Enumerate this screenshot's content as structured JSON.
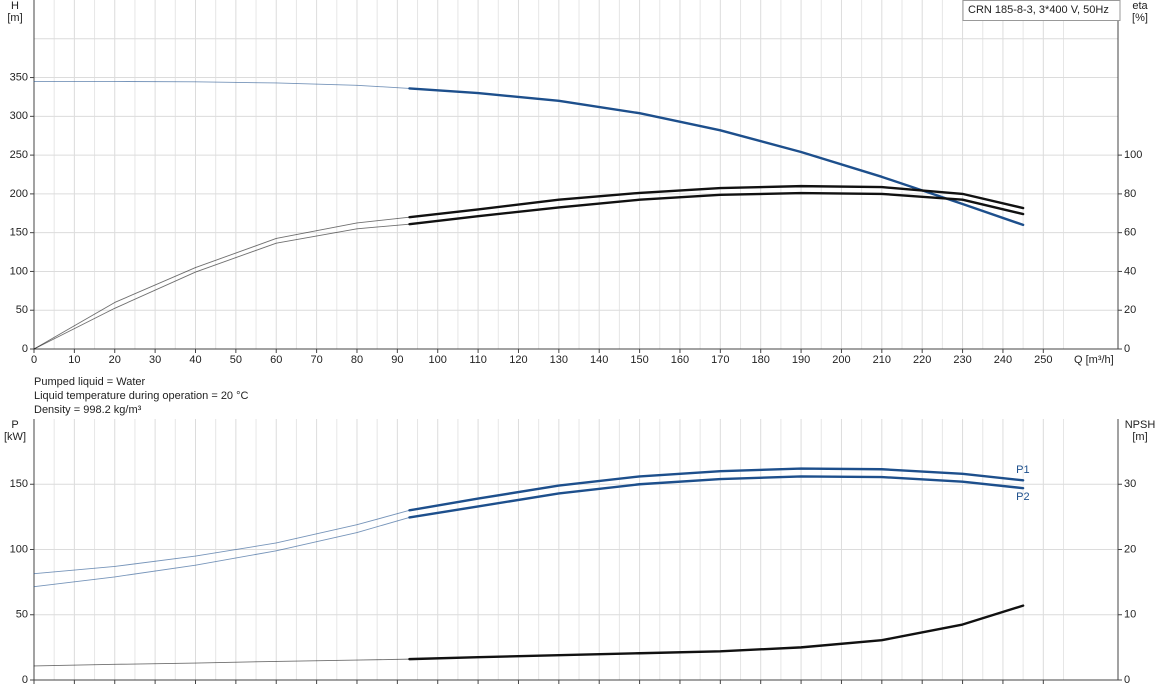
{
  "chart_data": [
    {
      "type": "line",
      "title": "CRN 185-8-3, 3*400 V, 50Hz",
      "ylabel": [
        "H",
        "[m]"
      ],
      "y2label": [
        "eta",
        "[%]"
      ],
      "xlabel": "Q [m³/h]",
      "xlim": [
        0,
        268.5
      ],
      "xticks": [
        0,
        10,
        20,
        30,
        40,
        50,
        60,
        70,
        80,
        90,
        100,
        110,
        120,
        130,
        140,
        150,
        160,
        170,
        180,
        190,
        200,
        210,
        220,
        230,
        240,
        250
      ],
      "ylim": [
        0,
        450
      ],
      "yticks": [
        0,
        50,
        100,
        150,
        200,
        250,
        300,
        350
      ],
      "y2lim": [
        0,
        180
      ],
      "y2ticks": [
        0,
        20,
        40,
        60,
        80,
        100
      ],
      "grid": true,
      "operating_range": [
        93,
        245
      ],
      "x": [
        0,
        20,
        40,
        60,
        80,
        93,
        110,
        130,
        150,
        170,
        190,
        210,
        230,
        245
      ],
      "series": [
        {
          "color": "#1d4f8c",
          "axis": "y",
          "values": [
            345,
            345,
            344.5,
            343,
            340,
            336,
            330,
            320,
            304,
            282,
            254,
            222,
            187,
            160
          ]
        },
        {
          "color": "#111111",
          "axis": "y2",
          "values": [
            0,
            24,
            42,
            57,
            65,
            68,
            72,
            77,
            80.5,
            83,
            84,
            83.5,
            80,
            72.7
          ]
        },
        {
          "color": "#111111",
          "axis": "y2",
          "values": [
            0,
            21,
            39.7,
            54.6,
            62,
            64.4,
            68.5,
            73,
            77,
            79.5,
            80.4,
            80,
            77,
            69.6
          ]
        }
      ],
      "annotations": [
        "Pumped liquid = Water",
        "Liquid temperature during operation = 20 °C",
        "Density = 998.2 kg/m³"
      ]
    },
    {
      "type": "line",
      "ylabel": [
        "P",
        "[kW]"
      ],
      "y2label": [
        "NPSH",
        "[m]"
      ],
      "xlim": [
        0,
        268.5
      ],
      "ylim": [
        0,
        200
      ],
      "yticks": [
        0,
        50,
        100,
        150
      ],
      "y2lim": [
        0,
        40
      ],
      "y2ticks": [
        0,
        10,
        20,
        30
      ],
      "grid": true,
      "operating_range": [
        93,
        245
      ],
      "x": [
        0,
        20,
        40,
        60,
        80,
        93,
        110,
        130,
        150,
        170,
        190,
        210,
        230,
        245
      ],
      "series": [
        {
          "name": "P1",
          "color": "#1d4f8c",
          "axis": "y",
          "values": [
            81.5,
            87,
            95,
            105,
            119,
            130,
            139,
            149,
            156,
            160,
            162,
            161.5,
            158,
            153
          ]
        },
        {
          "name": "P2",
          "color": "#1d4f8c",
          "axis": "y",
          "values": [
            71.5,
            79,
            88,
            99,
            113,
            124.6,
            133,
            143,
            150,
            154,
            156,
            155.5,
            152,
            147
          ]
        },
        {
          "color": "#111111",
          "axis": "y2",
          "values": [
            2.15,
            2.4,
            2.6,
            2.85,
            3.05,
            3.2,
            3.5,
            3.8,
            4.1,
            4.4,
            5,
            6.1,
            8.5,
            11.4
          ]
        }
      ]
    }
  ]
}
